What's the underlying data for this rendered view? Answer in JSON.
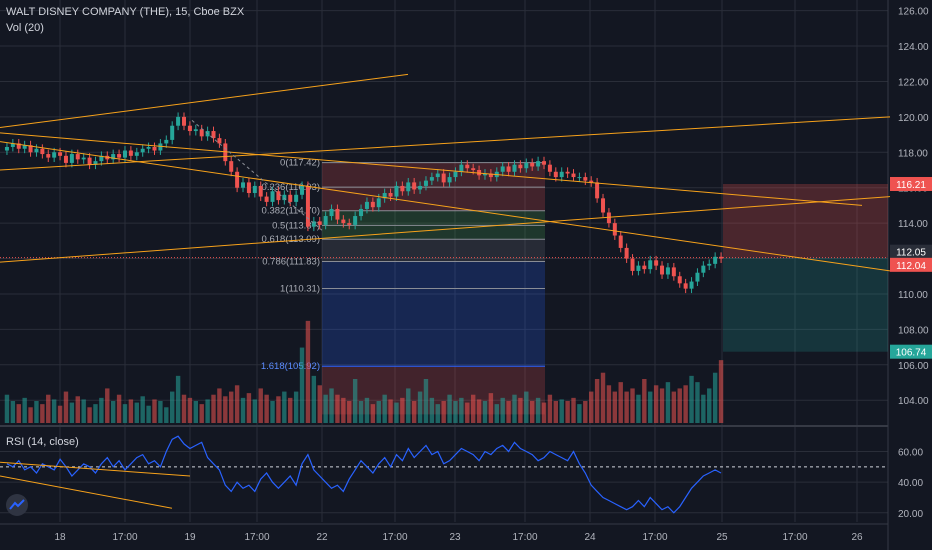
{
  "header": {
    "symbol": "WALT DISNEY COMPANY (THE), 15, Cboe BZX",
    "volume_indicator": "Vol (20)",
    "rsi_indicator": "RSI (14, close)"
  },
  "colors": {
    "background": "#131722",
    "grid": "#2a2e39",
    "up": "#26a69a",
    "down": "#ef5350",
    "trendline": "#f7a21b",
    "rsi_line": "#2962ff",
    "fib": "#8a8d95"
  },
  "chart_data": [
    {
      "type": "candlestick",
      "y_axis_ticks": [
        "126.00",
        "124.00",
        "122.00",
        "120.00",
        "118.00",
        "116.00",
        "114.00",
        "112.00",
        "110.00",
        "108.00",
        "106.00",
        "104.00"
      ],
      "x_axis_ticks": [
        "18",
        "17:00",
        "19",
        "17:00",
        "22",
        "17:00",
        "23",
        "17:00",
        "24",
        "17:00",
        "25",
        "17:00",
        "26"
      ],
      "ylim": [
        102.6,
        126.6
      ],
      "price_labels": [
        {
          "value": 116.21,
          "label": "116.21",
          "color": "#ef5350"
        },
        {
          "value": 112.05,
          "label": "112.05",
          "color": "#2a2e39"
        },
        {
          "value": 112.04,
          "label": "112.04",
          "color": "#ef5350"
        },
        {
          "value": 106.74,
          "label": "106.74",
          "color": "#26a69a"
        }
      ],
      "fib_levels": [
        {
          "ratio": "0",
          "price": 117.42,
          "label": "0(117.42)"
        },
        {
          "ratio": "0.236",
          "price": 116.03,
          "label": "0.236(116.03)"
        },
        {
          "ratio": "0.382",
          "price": 114.7,
          "label": "0.382(114.70)"
        },
        {
          "ratio": "0.5",
          "price": 113.87,
          "label": "0.5(113.87)"
        },
        {
          "ratio": "0.618",
          "price": 113.09,
          "label": "0.618(113.09)"
        },
        {
          "ratio": "0.786",
          "price": 111.83,
          "label": "0.786(111.83)"
        },
        {
          "ratio": "1",
          "price": 110.31,
          "label": "1(110.31)"
        },
        {
          "ratio": "1.618",
          "price": 105.92,
          "label": "1.618(105.92)"
        }
      ],
      "closes": [
        118.3,
        118.5,
        118.2,
        118.4,
        118.0,
        118.2,
        117.9,
        117.7,
        118.0,
        117.8,
        117.4,
        117.9,
        117.6,
        117.7,
        117.3,
        117.5,
        117.8,
        117.6,
        117.9,
        117.7,
        118.1,
        117.8,
        118.0,
        118.2,
        118.3,
        118.1,
        118.5,
        118.7,
        119.5,
        120.0,
        119.5,
        119.2,
        119.3,
        118.9,
        119.2,
        118.8,
        118.5,
        117.5,
        116.9,
        116.0,
        116.3,
        115.7,
        116.1,
        115.5,
        115.2,
        115.8,
        115.3,
        115.6,
        115.2,
        115.6,
        116.1,
        113.8,
        114.1,
        113.9,
        114.4,
        114.8,
        114.2,
        114.0,
        113.9,
        114.4,
        114.8,
        115.2,
        114.9,
        115.4,
        115.7,
        115.5,
        116.1,
        115.8,
        116.3,
        115.9,
        116.1,
        116.4,
        116.6,
        116.8,
        116.3,
        116.6,
        116.9,
        117.3,
        117.1,
        117.0,
        116.7,
        116.8,
        116.6,
        116.9,
        117.2,
        116.9,
        117.3,
        117.1,
        117.4,
        117.2,
        117.5,
        117.3,
        116.9,
        116.6,
        116.9,
        116.8,
        116.6,
        116.6,
        116.4,
        116.3,
        115.4,
        114.6,
        114.0,
        113.3,
        112.6,
        112.0,
        111.3,
        111.6,
        111.4,
        111.9,
        111.6,
        111.1,
        111.5,
        111.0,
        110.6,
        110.3,
        110.7,
        111.2,
        111.6,
        111.7,
        112.1,
        112.0
      ],
      "volumes": [
        18,
        14,
        12,
        16,
        10,
        14,
        12,
        18,
        15,
        11,
        20,
        13,
        17,
        15,
        10,
        12,
        16,
        22,
        14,
        18,
        12,
        15,
        13,
        17,
        11,
        15,
        14,
        10,
        20,
        30,
        18,
        16,
        14,
        12,
        15,
        18,
        22,
        17,
        20,
        24,
        16,
        19,
        15,
        22,
        18,
        14,
        17,
        20,
        16,
        20,
        48,
        65,
        30,
        24,
        18,
        22,
        18,
        16,
        14,
        28,
        14,
        16,
        12,
        14,
        18,
        15,
        13,
        16,
        22,
        14,
        20,
        28,
        16,
        12,
        14,
        18,
        14,
        16,
        13,
        18,
        15,
        14,
        19,
        12,
        16,
        14,
        18,
        16,
        20,
        14,
        16,
        13,
        18,
        14,
        15,
        14,
        16,
        12,
        14,
        20,
        28,
        32,
        24,
        20,
        26,
        20,
        22,
        18,
        28,
        20,
        24,
        22,
        26,
        20,
        22,
        24,
        30,
        26,
        18,
        22,
        32,
        40
      ],
      "trendlines": [
        {
          "from": [
            0,
            119.4
          ],
          "to": [
            408,
            122.4
          ]
        },
        {
          "from": [
            0,
            119.1
          ],
          "to": [
            862,
            115.0
          ]
        },
        {
          "from": [
            0,
            117.0
          ],
          "to": [
            890,
            120.0
          ]
        },
        {
          "from": [
            0,
            118.6
          ],
          "to": [
            890,
            111.3
          ]
        },
        {
          "from": [
            0,
            111.8
          ],
          "to": [
            890,
            115.5
          ]
        }
      ]
    },
    {
      "type": "line",
      "y_axis_ticks": [
        "60.00",
        "40.00",
        "20.00"
      ],
      "ylim": [
        14,
        76
      ],
      "reference_level": 50,
      "values": [
        52,
        50,
        54,
        48,
        50,
        46,
        52,
        50,
        48,
        55,
        50,
        44,
        48,
        52,
        50,
        46,
        52,
        56,
        50,
        54,
        48,
        52,
        56,
        58,
        52,
        54,
        50,
        60,
        68,
        70,
        65,
        62,
        64,
        66,
        56,
        52,
        48,
        38,
        34,
        40,
        36,
        38,
        34,
        42,
        46,
        40,
        36,
        40,
        44,
        38,
        52,
        58,
        48,
        44,
        40,
        36,
        38,
        34,
        42,
        48,
        54,
        50,
        46,
        52,
        56,
        50,
        58,
        54,
        62,
        56,
        60,
        64,
        58,
        60,
        52,
        54,
        58,
        62,
        60,
        58,
        54,
        60,
        58,
        62,
        64,
        60,
        66,
        62,
        60,
        58,
        54,
        56,
        60,
        58,
        56,
        54,
        60,
        52,
        46,
        38,
        34,
        30,
        28,
        26,
        24,
        22,
        24,
        28,
        24,
        30,
        26,
        22,
        24,
        20,
        24,
        30,
        36,
        40,
        44,
        46,
        48,
        46
      ],
      "trendlines": [
        {
          "from": [
            0,
            53
          ],
          "to": [
            190,
            44
          ]
        },
        {
          "from": [
            0,
            44
          ],
          "to": [
            172,
            23
          ]
        }
      ]
    }
  ]
}
